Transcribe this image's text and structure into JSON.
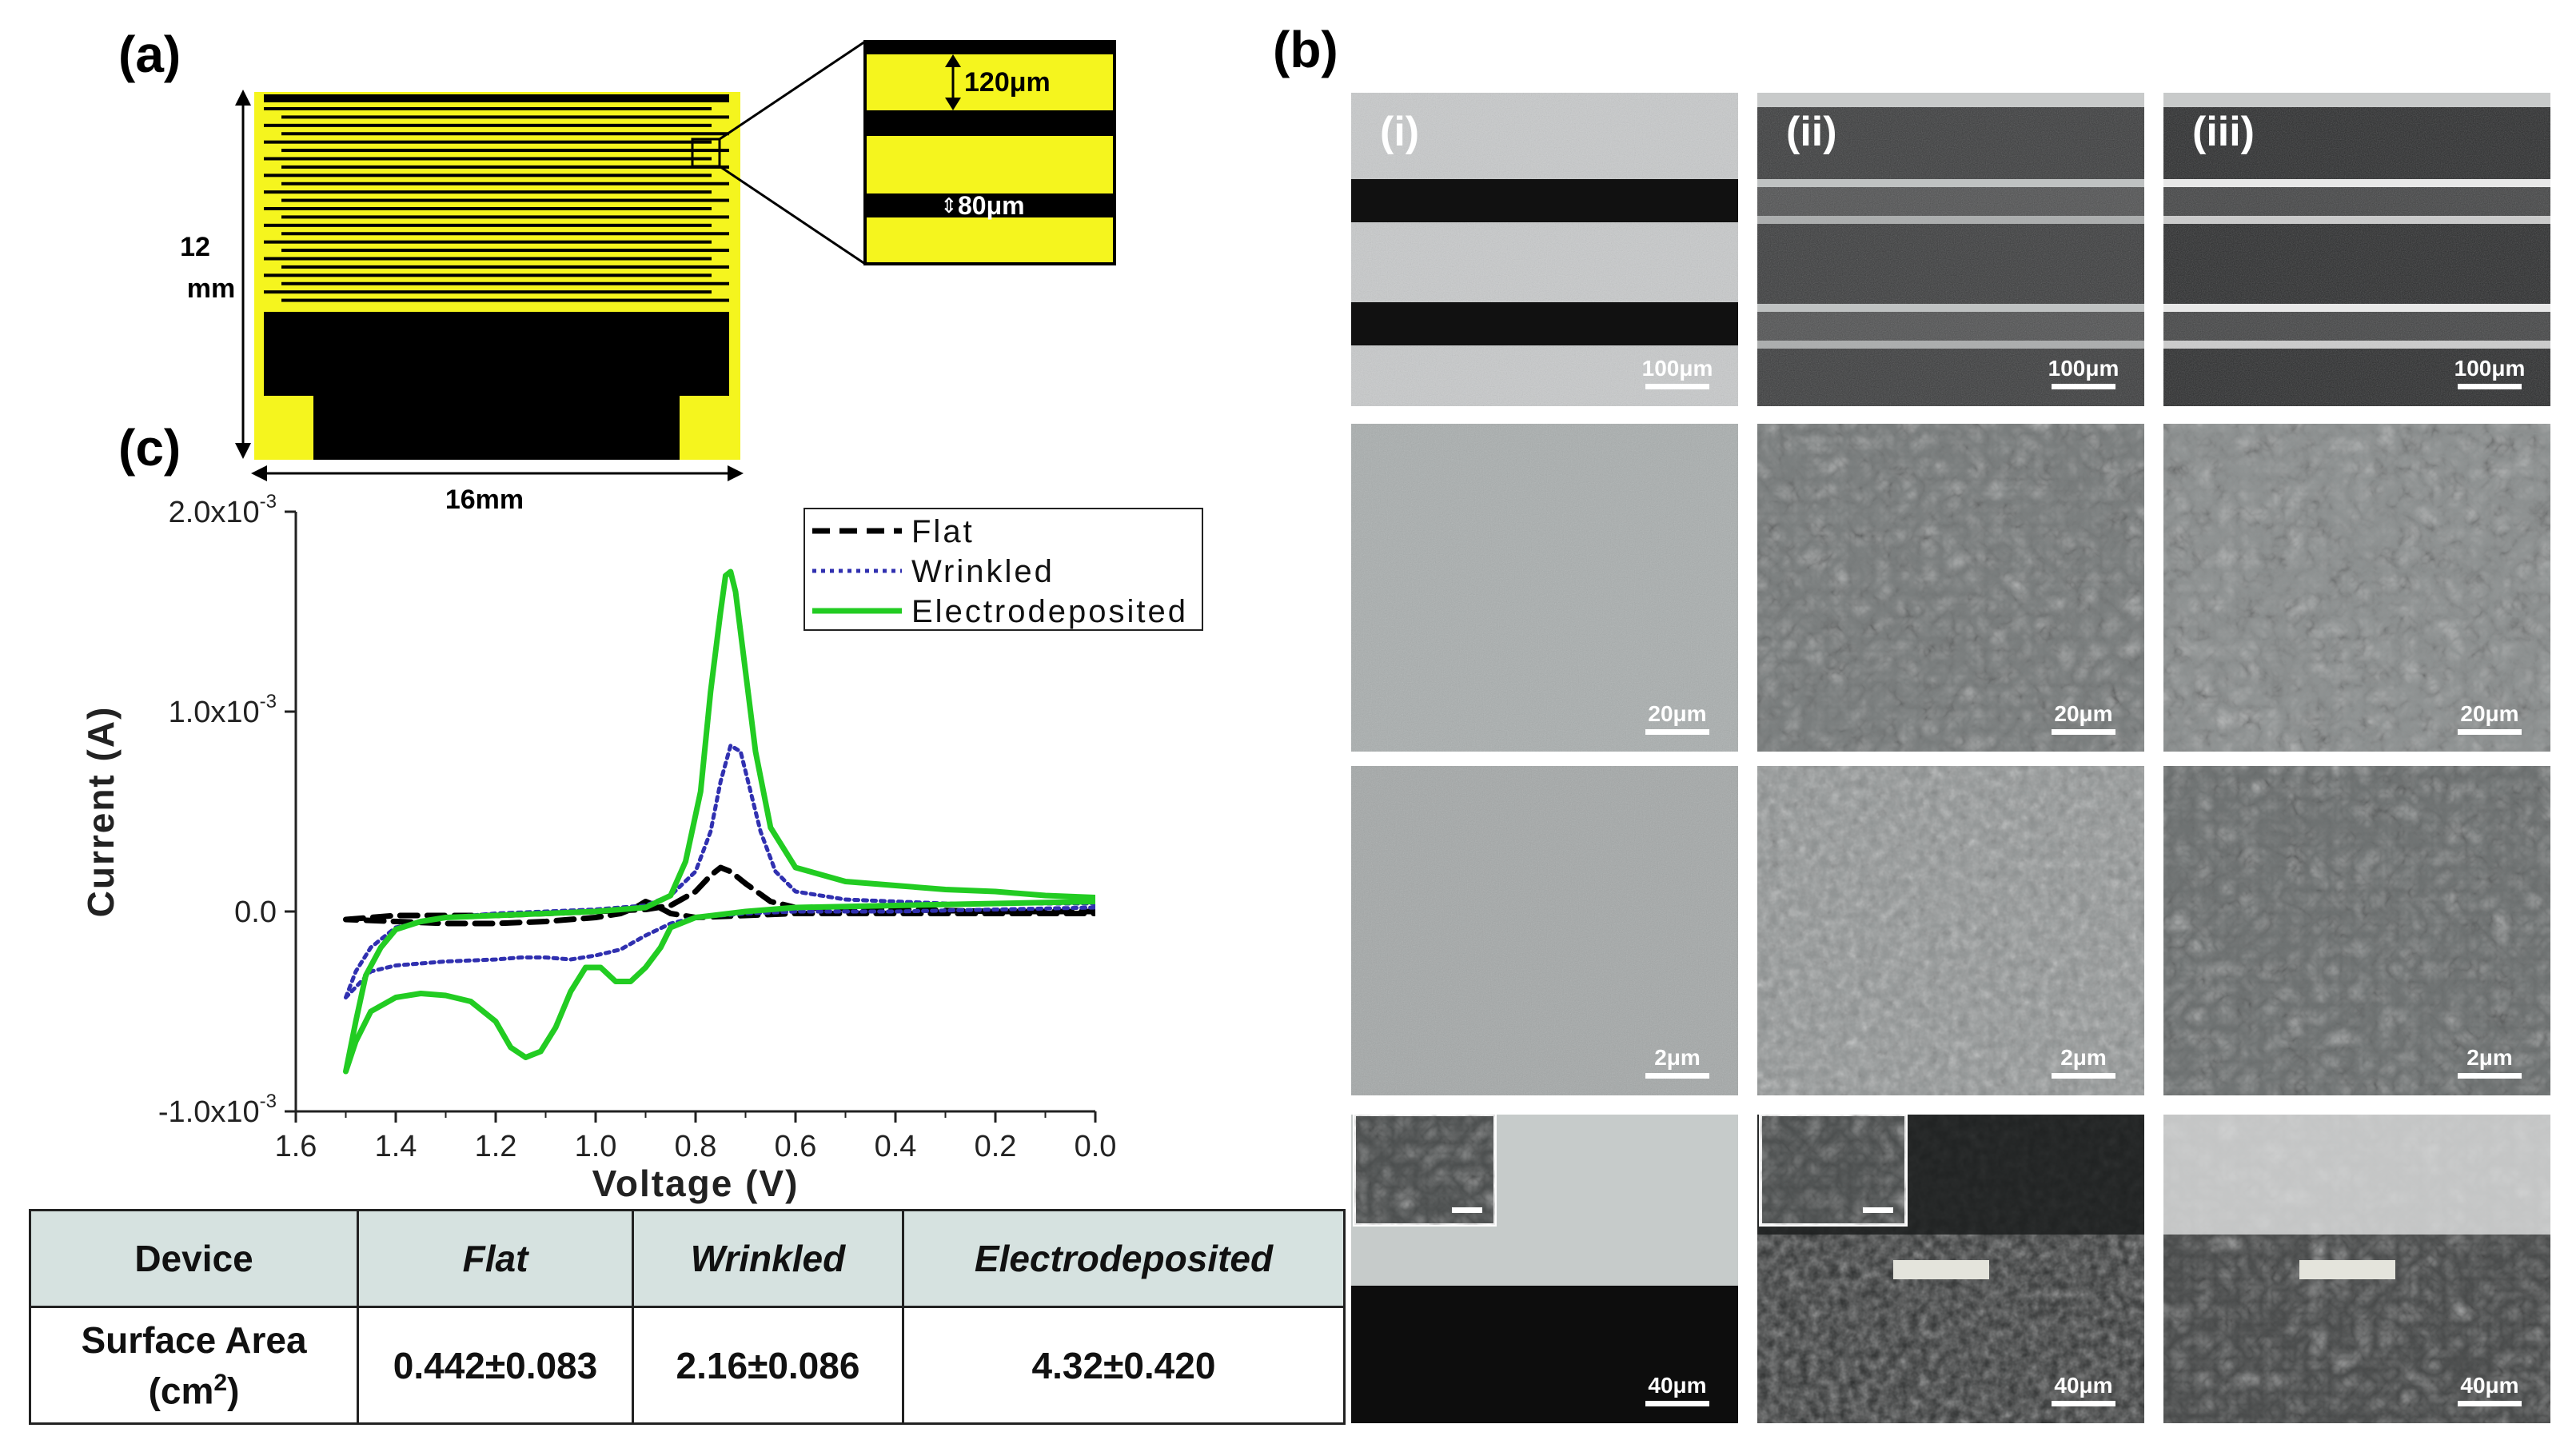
{
  "panels": {
    "a": {
      "label": "(a)",
      "height_label_1": "12",
      "height_label_2": "mm",
      "width_label": "16mm",
      "zoom_spacing_label": "120μm",
      "zoom_gap_label": "80μm",
      "colors": {
        "electrode": "#f5f51e",
        "gap": "#000000"
      }
    },
    "b": {
      "label": "(b)",
      "columns": [
        "(i)",
        "(ii)",
        "(iii)"
      ],
      "scale_bars": [
        [
          "100μm",
          "100μm",
          "100μm"
        ],
        [
          "20μm",
          "20μm",
          "20μm"
        ],
        [
          "2μm",
          "2μm",
          "2μm"
        ],
        [
          "40μm",
          "40μm",
          "40μm"
        ]
      ]
    },
    "c": {
      "label": "(c)"
    }
  },
  "chart_data": {
    "type": "line",
    "xlabel": "Voltage (V)",
    "ylabel": "Current (A)",
    "xlim": [
      1.6,
      0.0
    ],
    "ylim": [
      -0.001,
      0.002
    ],
    "x_reversed": true,
    "x_ticks": [
      "1.6",
      "1.4",
      "1.2",
      "1.0",
      "0.8",
      "0.6",
      "0.4",
      "0.2",
      "0.0"
    ],
    "y_ticks": [
      {
        "value": -0.001,
        "mantissa": "-1.0x10",
        "exp": "-3"
      },
      {
        "value": 0.0,
        "mantissa": "0.0",
        "exp": ""
      },
      {
        "value": 0.001,
        "mantissa": "1.0x10",
        "exp": "-3"
      },
      {
        "value": 0.002,
        "mantissa": "2.0x10",
        "exp": "-3"
      }
    ],
    "legend_position": "top-right",
    "series": [
      {
        "name": "Flat",
        "color": "#000000",
        "style": "dashed",
        "points": [
          [
            1.5,
            -4e-05
          ],
          [
            1.45,
            -3e-05
          ],
          [
            1.4,
            -2e-05
          ],
          [
            1.3,
            -2e-05
          ],
          [
            1.2,
            -2e-05
          ],
          [
            1.1,
            -1e-05
          ],
          [
            1.0,
            0.0
          ],
          [
            0.9,
            1e-05
          ],
          [
            0.85,
            3e-05
          ],
          [
            0.8,
            0.0001
          ],
          [
            0.77,
            0.00018
          ],
          [
            0.75,
            0.00022
          ],
          [
            0.73,
            0.0002
          ],
          [
            0.7,
            0.00014
          ],
          [
            0.65,
            5e-05
          ],
          [
            0.6,
            2e-05
          ],
          [
            0.4,
            1e-05
          ],
          [
            0.2,
            0.0
          ],
          [
            0.0,
            0.0
          ],
          [
            0.0,
            -1e-05
          ],
          [
            0.2,
            -1e-05
          ],
          [
            0.4,
            -1e-05
          ],
          [
            0.6,
            -1e-05
          ],
          [
            0.7,
            -2e-05
          ],
          [
            0.8,
            -3e-05
          ],
          [
            0.85,
            -1e-05
          ],
          [
            0.88,
            3e-05
          ],
          [
            0.9,
            5e-05
          ],
          [
            0.92,
            2e-05
          ],
          [
            0.95,
            -1e-05
          ],
          [
            1.0,
            -3e-05
          ],
          [
            1.1,
            -5e-05
          ],
          [
            1.2,
            -6e-05
          ],
          [
            1.3,
            -6e-05
          ],
          [
            1.4,
            -5e-05
          ],
          [
            1.5,
            -4e-05
          ]
        ]
      },
      {
        "name": "Wrinkled",
        "color": "#3030b0",
        "style": "dotted",
        "points": [
          [
            1.5,
            -0.00043
          ],
          [
            1.48,
            -0.0003
          ],
          [
            1.45,
            -0.00018
          ],
          [
            1.4,
            -8e-05
          ],
          [
            1.3,
            -3e-05
          ],
          [
            1.2,
            -1e-05
          ],
          [
            1.0,
            1e-05
          ],
          [
            0.9,
            3e-05
          ],
          [
            0.85,
            8e-05
          ],
          [
            0.8,
            0.0002
          ],
          [
            0.77,
            0.0004
          ],
          [
            0.75,
            0.00065
          ],
          [
            0.73,
            0.00083
          ],
          [
            0.71,
            0.0008
          ],
          [
            0.69,
            0.0006
          ],
          [
            0.67,
            0.0004
          ],
          [
            0.64,
            0.0002
          ],
          [
            0.6,
            0.0001
          ],
          [
            0.5,
            6e-05
          ],
          [
            0.4,
            5e-05
          ],
          [
            0.3,
            4e-05
          ],
          [
            0.2,
            4e-05
          ],
          [
            0.1,
            4e-05
          ],
          [
            0.0,
            4e-05
          ],
          [
            0.0,
            2e-05
          ],
          [
            0.2,
            1e-05
          ],
          [
            0.4,
            0.0
          ],
          [
            0.6,
            0.0
          ],
          [
            0.7,
            -1e-05
          ],
          [
            0.8,
            -3e-05
          ],
          [
            0.85,
            -6e-05
          ],
          [
            0.9,
            -0.00012
          ],
          [
            0.95,
            -0.00019
          ],
          [
            1.0,
            -0.00022
          ],
          [
            1.05,
            -0.00024
          ],
          [
            1.1,
            -0.00023
          ],
          [
            1.15,
            -0.00023
          ],
          [
            1.2,
            -0.00024
          ],
          [
            1.3,
            -0.00025
          ],
          [
            1.4,
            -0.00027
          ],
          [
            1.45,
            -0.0003
          ],
          [
            1.5,
            -0.00043
          ]
        ]
      },
      {
        "name": "Electrodeposited",
        "color": "#22cc22",
        "style": "solid",
        "points": [
          [
            1.5,
            -0.0008
          ],
          [
            1.48,
            -0.00055
          ],
          [
            1.46,
            -0.00032
          ],
          [
            1.43,
            -0.00018
          ],
          [
            1.4,
            -9e-05
          ],
          [
            1.35,
            -5e-05
          ],
          [
            1.3,
            -3e-05
          ],
          [
            1.2,
            -2e-05
          ],
          [
            1.0,
            0.0
          ],
          [
            0.9,
            2e-05
          ],
          [
            0.85,
            8e-05
          ],
          [
            0.82,
            0.00025
          ],
          [
            0.79,
            0.0006
          ],
          [
            0.77,
            0.0011
          ],
          [
            0.75,
            0.0015
          ],
          [
            0.74,
            0.00168
          ],
          [
            0.73,
            0.0017
          ],
          [
            0.72,
            0.0016
          ],
          [
            0.7,
            0.0012
          ],
          [
            0.68,
            0.0008
          ],
          [
            0.65,
            0.00042
          ],
          [
            0.6,
            0.00022
          ],
          [
            0.5,
            0.00015
          ],
          [
            0.4,
            0.00013
          ],
          [
            0.3,
            0.00011
          ],
          [
            0.2,
            0.0001
          ],
          [
            0.1,
            8e-05
          ],
          [
            0.0,
            7e-05
          ],
          [
            0.0,
            5e-05
          ],
          [
            0.2,
            4e-05
          ],
          [
            0.4,
            3e-05
          ],
          [
            0.6,
            2e-05
          ],
          [
            0.7,
            0.0
          ],
          [
            0.8,
            -3e-05
          ],
          [
            0.85,
            -8e-05
          ],
          [
            0.87,
            -0.00018
          ],
          [
            0.9,
            -0.00028
          ],
          [
            0.93,
            -0.00035
          ],
          [
            0.96,
            -0.00035
          ],
          [
            0.99,
            -0.00028
          ],
          [
            1.02,
            -0.00028
          ],
          [
            1.05,
            -0.0004
          ],
          [
            1.08,
            -0.00058
          ],
          [
            1.11,
            -0.0007
          ],
          [
            1.14,
            -0.00073
          ],
          [
            1.17,
            -0.00068
          ],
          [
            1.2,
            -0.00055
          ],
          [
            1.25,
            -0.00045
          ],
          [
            1.3,
            -0.00042
          ],
          [
            1.35,
            -0.00041
          ],
          [
            1.4,
            -0.00043
          ],
          [
            1.45,
            -0.0005
          ],
          [
            1.48,
            -0.00065
          ],
          [
            1.5,
            -0.0008
          ]
        ]
      }
    ]
  },
  "table": {
    "header": {
      "device": "Device",
      "flat": "Flat",
      "wrinkled": "Wrinkled",
      "electrodeposited": "Electrodeposited"
    },
    "row": {
      "label_1": "Surface Area",
      "label_2": "(cm",
      "label_sup": "2",
      "label_3": ")",
      "flat": "0.442±0.083",
      "wrinkled": "2.16±0.086",
      "electrodeposited": "4.32±0.420"
    }
  }
}
